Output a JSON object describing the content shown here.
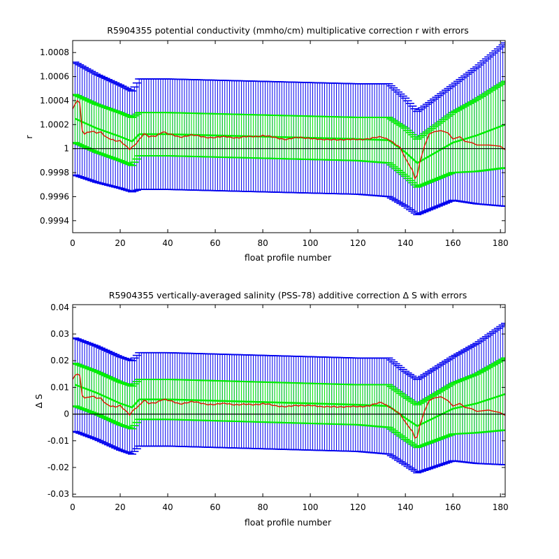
{
  "chart_data": [
    {
      "type": "line",
      "title": "R5904355 potential conductivity (mmho/cm) multiplicative correction r with errors",
      "xlabel": "float profile number",
      "ylabel": "r",
      "xlim": [
        0,
        182
      ],
      "ylim": [
        0.9993,
        1.0009
      ],
      "xticks": [
        0,
        20,
        40,
        60,
        80,
        100,
        120,
        140,
        160,
        180
      ],
      "xtick_labels": [
        "0",
        "20",
        "40",
        "60",
        "80",
        "100",
        "120",
        "140",
        "160",
        "180"
      ],
      "yticks": [
        0.9994,
        0.9996,
        0.9998,
        1.0,
        1.0002,
        1.0004,
        1.0006,
        1.0008
      ],
      "ytick_labels": [
        "0.9994",
        "0.9996",
        "0.9998",
        "1",
        "1.0002",
        "1.0004",
        "1.0006",
        "1.0008"
      ],
      "reference_line": 1.0,
      "grid": false,
      "colors": {
        "outer_errorbars": "#0000ee",
        "inner_errorbars": "#00ee00",
        "raw_estimate": "#dd1100",
        "reference": "#000000"
      },
      "series": [
        {
          "role": "fit",
          "x": [
            1,
            10,
            20,
            25,
            28,
            40,
            60,
            80,
            100,
            120,
            133,
            140,
            145,
            160,
            170,
            182
          ],
          "y": [
            1.00025,
            1.00017,
            1.0001,
            1.00006,
            1.00012,
            1.00012,
            1.00011,
            1.0001,
            1.00009,
            1.00008,
            1.00007,
            0.99997,
            0.99988,
            1.00005,
            1.00011,
            1.0002
          ]
        },
        {
          "role": "inner_error_half_width",
          "x": [
            1,
            10,
            20,
            25,
            28,
            40,
            60,
            80,
            100,
            120,
            133,
            140,
            145,
            160,
            170,
            182
          ],
          "y": [
            0.0002,
            0.0002,
            0.0002,
            0.0002,
            0.00018,
            0.00018,
            0.00018,
            0.00018,
            0.00018,
            0.00018,
            0.00019,
            0.0002,
            0.0002,
            0.00025,
            0.0003,
            0.00036
          ]
        },
        {
          "role": "outer_error_half_width",
          "x": [
            1,
            10,
            20,
            25,
            28,
            40,
            60,
            80,
            100,
            120,
            133,
            140,
            145,
            160,
            170,
            182
          ],
          "y": [
            0.00047,
            0.00045,
            0.00043,
            0.00042,
            0.00046,
            0.00046,
            0.00046,
            0.00046,
            0.00046,
            0.00046,
            0.00047,
            0.00045,
            0.00043,
            0.00048,
            0.00057,
            0.00068
          ]
        },
        {
          "role": "raw_estimate",
          "x": [
            0,
            1,
            2,
            3,
            4,
            5,
            6,
            8,
            10,
            12,
            14,
            16,
            18,
            20,
            22,
            24,
            26,
            28,
            30,
            32,
            35,
            38,
            40,
            45,
            50,
            55,
            60,
            65,
            70,
            75,
            80,
            85,
            90,
            95,
            100,
            105,
            110,
            115,
            120,
            125,
            130,
            133,
            136,
            138,
            140,
            142,
            143,
            144,
            145,
            146,
            148,
            150,
            152,
            155,
            158,
            160,
            163,
            165,
            168,
            170,
            175,
            180,
            182
          ],
          "y": [
            1.00033,
            1.00037,
            1.0004,
            1.00038,
            1.00015,
            1.00012,
            1.00013,
            1.00014,
            1.00013,
            1.00014,
            1.0001,
            1.00008,
            1.00006,
            1.00006,
            1.00003,
            1.0,
            1.00003,
            1.00007,
            1.00012,
            1.0001,
            1.00011,
            1.00014,
            1.00012,
            1.0001,
            1.00011,
            1.0001,
            1.00009,
            1.0001,
            1.00009,
            1.0001,
            1.00011,
            1.00009,
            1.00008,
            1.00009,
            1.00009,
            1.00007,
            1.00008,
            1.00007,
            1.00008,
            1.00008,
            1.0001,
            1.00008,
            1.00003,
            1.0,
            0.99992,
            0.99985,
            0.99982,
            0.99975,
            0.99978,
            0.99988,
            1.00002,
            1.00012,
            1.00014,
            1.00015,
            1.00013,
            1.00008,
            1.0001,
            1.00006,
            1.00005,
            1.00003,
            1.00003,
            1.00002,
            0.99999
          ]
        }
      ]
    },
    {
      "type": "line",
      "title": "R5904355 vertically-averaged salinity (PSS-78) additive correction Δ S with errors",
      "xlabel": "float profile number",
      "ylabel": "Δ S",
      "xlim": [
        0,
        182
      ],
      "ylim": [
        -0.031,
        0.041
      ],
      "xticks": [
        0,
        20,
        40,
        60,
        80,
        100,
        120,
        140,
        160,
        180
      ],
      "xtick_labels": [
        "0",
        "20",
        "40",
        "60",
        "80",
        "100",
        "120",
        "140",
        "160",
        "180"
      ],
      "yticks": [
        -0.03,
        -0.02,
        -0.01,
        0,
        0.01,
        0.02,
        0.03,
        0.04
      ],
      "ytick_labels": [
        "-0.03",
        "-0.02",
        "-0.01",
        "0",
        "0.01",
        "0.02",
        "0.03",
        "0.04"
      ],
      "reference_line": 0,
      "grid": false,
      "colors": {
        "outer_errorbars": "#0000ee",
        "inner_errorbars": "#00ee00",
        "raw_estimate": "#dd1100",
        "reference": "#000000"
      },
      "series": [
        {
          "role": "fit",
          "x": [
            1,
            10,
            20,
            25,
            28,
            40,
            60,
            80,
            100,
            120,
            133,
            140,
            145,
            160,
            170,
            182
          ],
          "y": [
            0.011,
            0.008,
            0.004,
            0.0025,
            0.0055,
            0.0055,
            0.005,
            0.0045,
            0.004,
            0.0035,
            0.003,
            -0.0015,
            -0.0045,
            0.002,
            0.004,
            0.0075
          ]
        },
        {
          "role": "inner_error_half_width",
          "x": [
            1,
            10,
            20,
            25,
            28,
            40,
            60,
            80,
            100,
            120,
            133,
            140,
            145,
            160,
            170,
            182
          ],
          "y": [
            0.008,
            0.008,
            0.008,
            0.008,
            0.0075,
            0.0075,
            0.0075,
            0.0075,
            0.0075,
            0.0075,
            0.008,
            0.008,
            0.008,
            0.0095,
            0.011,
            0.0135
          ]
        },
        {
          "role": "outer_error_half_width",
          "x": [
            1,
            10,
            20,
            25,
            28,
            40,
            60,
            80,
            100,
            120,
            133,
            140,
            145,
            160,
            170,
            182
          ],
          "y": [
            0.0175,
            0.0175,
            0.0175,
            0.0175,
            0.0175,
            0.0175,
            0.0175,
            0.0175,
            0.0175,
            0.0175,
            0.018,
            0.0175,
            0.0175,
            0.0195,
            0.0225,
            0.0265
          ]
        },
        {
          "role": "raw_estimate",
          "x": [
            0,
            1,
            2,
            3,
            4,
            5,
            6,
            8,
            10,
            12,
            14,
            16,
            18,
            20,
            22,
            24,
            26,
            28,
            30,
            32,
            35,
            38,
            40,
            45,
            50,
            55,
            60,
            65,
            70,
            75,
            80,
            85,
            90,
            95,
            100,
            105,
            110,
            115,
            120,
            125,
            130,
            133,
            136,
            138,
            140,
            142,
            143,
            144,
            145,
            146,
            148,
            150,
            152,
            155,
            158,
            160,
            163,
            165,
            168,
            170,
            175,
            180,
            182
          ],
          "y": [
            0.013,
            0.0145,
            0.015,
            0.0145,
            0.007,
            0.006,
            0.006,
            0.0065,
            0.006,
            0.006,
            0.004,
            0.003,
            0.0025,
            0.003,
            0.0015,
            0.0,
            0.002,
            0.003,
            0.005,
            0.004,
            0.0045,
            0.0055,
            0.005,
            0.004,
            0.0045,
            0.004,
            0.0035,
            0.004,
            0.0035,
            0.0035,
            0.004,
            0.003,
            0.003,
            0.003,
            0.0035,
            0.0025,
            0.003,
            0.0025,
            0.003,
            0.003,
            0.0045,
            0.003,
            0.001,
            -0.0005,
            -0.003,
            -0.0055,
            -0.0065,
            -0.009,
            -0.0085,
            -0.0045,
            0.001,
            0.005,
            0.006,
            0.0065,
            0.005,
            0.003,
            0.004,
            0.0025,
            0.002,
            0.001,
            0.0015,
            0.0005,
            -0.0005
          ]
        }
      ]
    }
  ]
}
